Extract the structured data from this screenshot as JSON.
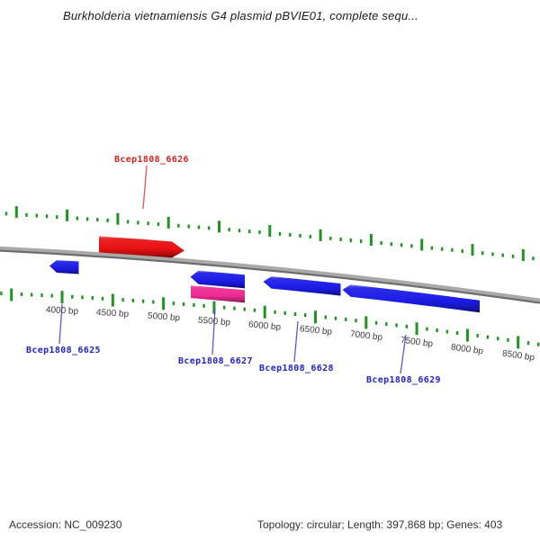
{
  "title": "Burkholderia vietnamiensis G4 plasmid pBVIE01, complete sequ...",
  "viewer": {
    "ruler_unit": "bp",
    "ruler_labels": [
      "4000 bp",
      "4500 bp",
      "5000 bp",
      "5500 bp",
      "6000 bp",
      "6500 bp",
      "7000 bp",
      "7500 bp",
      "8000 bp",
      "8500 bp"
    ],
    "genes": [
      {
        "label": "Bcep1808_6626",
        "color_key": "red",
        "strand": "+"
      },
      {
        "label": "Bcep1808_6625",
        "color_key": "blue",
        "strand": "-"
      },
      {
        "label": "Bcep1808_6627",
        "color_key": "blue",
        "strand": "-"
      },
      {
        "label": "",
        "color_key": "pink",
        "strand": "-"
      },
      {
        "label": "Bcep1808_6628",
        "color_key": "blue",
        "strand": "-"
      },
      {
        "label": "Bcep1808_6629",
        "color_key": "blue",
        "strand": "-"
      }
    ]
  },
  "status_bar": {
    "accession": "Accession: NC_009230",
    "topology": "Topology: circular; Length: 397,868 bp; Genes: 403"
  },
  "colors": {
    "gene_red": "#e81111",
    "gene_blue": "#1b1be6",
    "gene_pink": "#ee2a92",
    "tick_green": "#1e951e",
    "backbone_light": "#a9a9a9",
    "backbone_dark": "#6b6b6b",
    "label_red": "#d92222",
    "label_blue": "#2323cd",
    "leader_red": "#e85555",
    "leader_blue": "#5a5ad2",
    "ruler_text": "#3d3d3d"
  }
}
